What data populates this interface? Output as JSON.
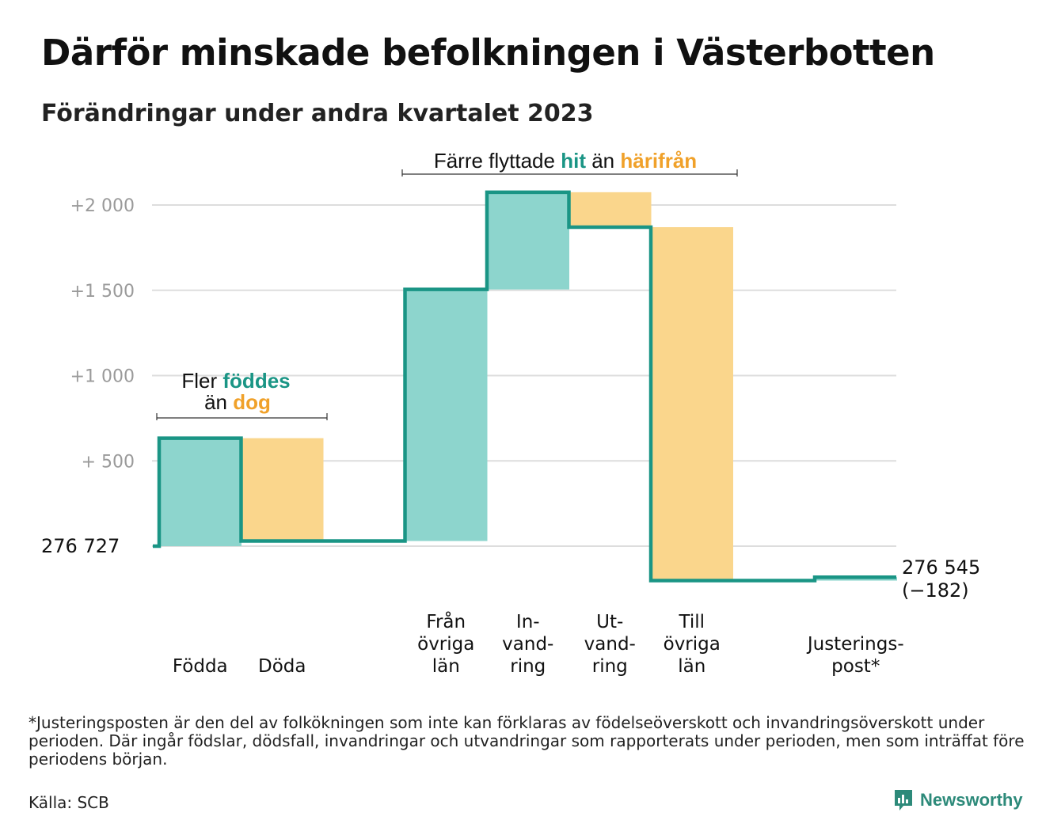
{
  "title": "Därför minskade befolkningen i Västerbotten",
  "subtitle": "Förändringar under andra kvartalet 2023",
  "footnote": "*Justeringsposten är den del av folkökningen som inte kan förklaras av födelseöverskott och invandringsöverskott under perioden. Där ingår födslar, dödsfall, invandringar och utvandringar som rapporterats under perioden, men som inträffat före periodens början.",
  "source": "Källa: SCB",
  "brand": "Newsworthy",
  "colors": {
    "increase": "#8dd5cd",
    "decrease": "#fad68c",
    "line": "#1a9585",
    "teal_text": "#1a9585",
    "orange_text": "#f0a12a",
    "grid": "#dddddd"
  },
  "annotations": {
    "births": {
      "prefix": "Fler",
      "hl1": "föddes",
      "mid": "än",
      "hl2": "dog"
    },
    "migration": {
      "prefix": "Färre flyttade",
      "hl1": "hit",
      "mid": "än",
      "hl2": "härifrån"
    }
  },
  "chart_data": {
    "type": "waterfall",
    "start_label": "276 727",
    "end_label": "276 545",
    "end_change_label": "(−182)",
    "y_ticks": [
      {
        "value": 500,
        "label": "+ 500"
      },
      {
        "value": 1000,
        "label": "+1 000"
      },
      {
        "value": 1500,
        "label": "+1 500"
      },
      {
        "value": 2000,
        "label": "+2 000"
      }
    ],
    "y_range": [
      -200,
      2000
    ],
    "steps": [
      {
        "label_lines": [
          "Födda"
        ],
        "delta": 633,
        "kind": "increase"
      },
      {
        "label_lines": [
          "Döda"
        ],
        "delta": -603,
        "kind": "decrease"
      },
      {
        "label_lines": [],
        "delta": 0,
        "kind": "gap"
      },
      {
        "label_lines": [
          "Från",
          "övriga",
          "län"
        ],
        "delta": 1475,
        "kind": "increase"
      },
      {
        "label_lines": [
          "In-",
          "vand-",
          "ring"
        ],
        "delta": 570,
        "kind": "increase"
      },
      {
        "label_lines": [
          "Ut-",
          "vand-",
          "ring"
        ],
        "delta": -205,
        "kind": "decrease"
      },
      {
        "label_lines": [
          "Till",
          "övriga",
          "län"
        ],
        "delta": -2072,
        "kind": "decrease"
      },
      {
        "label_lines": [],
        "delta": 0,
        "kind": "gap"
      },
      {
        "label_lines": [
          "Justerings-",
          "post*"
        ],
        "delta": 20,
        "kind": "increase"
      }
    ]
  }
}
